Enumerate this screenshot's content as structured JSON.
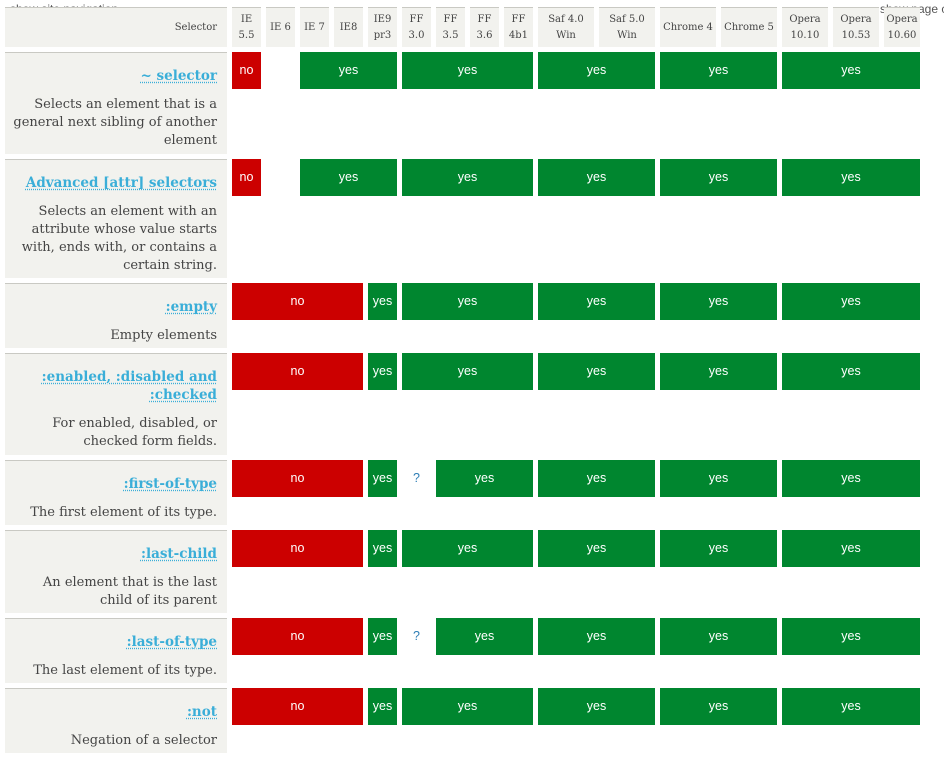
{
  "nav": {
    "show_site_navigation": "show site navigation",
    "show_page_contents": "show page cor"
  },
  "header": {
    "selector": "Selector",
    "browsers": [
      {
        "l1": "IE",
        "l2": "5.5"
      },
      {
        "l1": "IE 6",
        "l2": ""
      },
      {
        "l1": "IE 7",
        "l2": ""
      },
      {
        "l1": "IE8",
        "l2": ""
      },
      {
        "l1": "IE9",
        "l2": "pr3"
      },
      {
        "l1": "FF",
        "l2": "3.0"
      },
      {
        "l1": "FF",
        "l2": "3.5"
      },
      {
        "l1": "FF",
        "l2": "3.6"
      },
      {
        "l1": "FF",
        "l2": "4b1"
      },
      {
        "l1": "Saf 4.0",
        "l2": "Win"
      },
      {
        "l1": "Saf 5.0",
        "l2": "Win"
      },
      {
        "l1": "Chrome 4",
        "l2": ""
      },
      {
        "l1": "Chrome 5",
        "l2": ""
      },
      {
        "l1": "Opera",
        "l2": "10.10"
      },
      {
        "l1": "Opera",
        "l2": "10.53"
      },
      {
        "l1": "Opera",
        "l2": "10.60"
      }
    ]
  },
  "rows": [
    {
      "name": "~ selector",
      "desc": "Selects an element that is a general next sibling of another element",
      "cells": [
        {
          "label": "no",
          "status": "no",
          "span": 1
        },
        {
          "label": "",
          "status": "blank",
          "span": 1
        },
        {
          "label": "yes",
          "status": "yes",
          "span": 3
        },
        {
          "label": "yes",
          "status": "yes",
          "span": 4
        },
        {
          "label": "yes",
          "status": "yes",
          "span": 2
        },
        {
          "label": "yes",
          "status": "yes",
          "span": 2
        },
        {
          "label": "yes",
          "status": "yes",
          "span": 3
        }
      ]
    },
    {
      "name": "Advanced [attr] selectors",
      "desc": "Selects an element with an attribute whose value starts with, ends with, or contains a certain string.",
      "cells": [
        {
          "label": "no",
          "status": "no",
          "span": 1
        },
        {
          "label": "",
          "status": "blank",
          "span": 1
        },
        {
          "label": "yes",
          "status": "yes",
          "span": 3
        },
        {
          "label": "yes",
          "status": "yes",
          "span": 4
        },
        {
          "label": "yes",
          "status": "yes",
          "span": 2
        },
        {
          "label": "yes",
          "status": "yes",
          "span": 2
        },
        {
          "label": "yes",
          "status": "yes",
          "span": 3
        }
      ]
    },
    {
      "name": ":empty",
      "desc": "Empty elements",
      "cells": [
        {
          "label": "no",
          "status": "no",
          "span": 4
        },
        {
          "label": "yes",
          "status": "yes",
          "span": 1
        },
        {
          "label": "yes",
          "status": "yes",
          "span": 4
        },
        {
          "label": "yes",
          "status": "yes",
          "span": 2
        },
        {
          "label": "yes",
          "status": "yes",
          "span": 2
        },
        {
          "label": "yes",
          "status": "yes",
          "span": 3
        }
      ]
    },
    {
      "name": ":enabled, :disabled and :checked",
      "desc": "For enabled, disabled, or checked form fields.",
      "cells": [
        {
          "label": "no",
          "status": "no",
          "span": 4
        },
        {
          "label": "yes",
          "status": "yes",
          "span": 1
        },
        {
          "label": "yes",
          "status": "yes",
          "span": 4
        },
        {
          "label": "yes",
          "status": "yes",
          "span": 2
        },
        {
          "label": "yes",
          "status": "yes",
          "span": 2
        },
        {
          "label": "yes",
          "status": "yes",
          "span": 3
        }
      ]
    },
    {
      "name": ":first-of-type",
      "desc": "The first element of its type.",
      "cells": [
        {
          "label": "no",
          "status": "no",
          "span": 4
        },
        {
          "label": "yes",
          "status": "yes",
          "span": 1
        },
        {
          "label": "?",
          "status": "unknown",
          "span": 1
        },
        {
          "label": "yes",
          "status": "yes",
          "span": 3
        },
        {
          "label": "yes",
          "status": "yes",
          "span": 2
        },
        {
          "label": "yes",
          "status": "yes",
          "span": 2
        },
        {
          "label": "yes",
          "status": "yes",
          "span": 3
        }
      ]
    },
    {
      "name": ":last-child",
      "desc": "An element that is the last child of its parent",
      "cells": [
        {
          "label": "no",
          "status": "no",
          "span": 4
        },
        {
          "label": "yes",
          "status": "yes",
          "span": 1
        },
        {
          "label": "yes",
          "status": "yes",
          "span": 4
        },
        {
          "label": "yes",
          "status": "yes",
          "span": 2
        },
        {
          "label": "yes",
          "status": "yes",
          "span": 2
        },
        {
          "label": "yes",
          "status": "yes",
          "span": 3
        }
      ]
    },
    {
      "name": ":last-of-type",
      "desc": "The last element of its type.",
      "cells": [
        {
          "label": "no",
          "status": "no",
          "span": 4
        },
        {
          "label": "yes",
          "status": "yes",
          "span": 1
        },
        {
          "label": "?",
          "status": "unknown",
          "span": 1
        },
        {
          "label": "yes",
          "status": "yes",
          "span": 3
        },
        {
          "label": "yes",
          "status": "yes",
          "span": 2
        },
        {
          "label": "yes",
          "status": "yes",
          "span": 2
        },
        {
          "label": "yes",
          "status": "yes",
          "span": 3
        }
      ]
    },
    {
      "name": ":not",
      "desc": "Negation of a selector",
      "cells": [
        {
          "label": "no",
          "status": "no",
          "span": 4
        },
        {
          "label": "yes",
          "status": "yes",
          "span": 1
        },
        {
          "label": "yes",
          "status": "yes",
          "span": 4
        },
        {
          "label": "yes",
          "status": "yes",
          "span": 2
        },
        {
          "label": "yes",
          "status": "yes",
          "span": 2
        },
        {
          "label": "yes",
          "status": "yes",
          "span": 3
        }
      ]
    }
  ],
  "colors": {
    "yes": "#00862f",
    "no": "#cc0000",
    "link": "#3aaed8",
    "label_bg": "#f2f2ee"
  }
}
